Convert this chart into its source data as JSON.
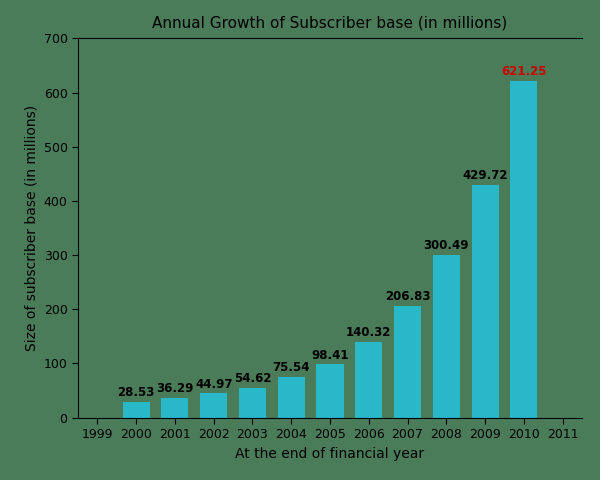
{
  "title": "Annual Growth of Subscriber base (in millions)",
  "xlabel": "At the end of financial year",
  "ylabel": "Size of subscriber base (in millions)",
  "years": [
    2000,
    2001,
    2002,
    2003,
    2004,
    2005,
    2006,
    2007,
    2008,
    2009,
    2010
  ],
  "values": [
    28.53,
    36.29,
    44.97,
    54.62,
    75.54,
    98.41,
    140.32,
    206.83,
    300.49,
    429.72,
    621.25
  ],
  "bar_color": "#29b8c8",
  "last_bar_label_color": "#cc0000",
  "default_label_color": "#000000",
  "xlim": [
    1998.5,
    2011.5
  ],
  "ylim": [
    0,
    700
  ],
  "yticks": [
    0,
    100,
    200,
    300,
    400,
    500,
    600,
    700
  ],
  "xticks": [
    1999,
    2000,
    2001,
    2002,
    2003,
    2004,
    2005,
    2006,
    2007,
    2008,
    2009,
    2010,
    2011
  ],
  "bar_width": 0.7,
  "background_color": "#4a7c59",
  "title_fontsize": 11,
  "axis_label_fontsize": 10,
  "tick_fontsize": 9,
  "annotation_fontsize": 8.5
}
